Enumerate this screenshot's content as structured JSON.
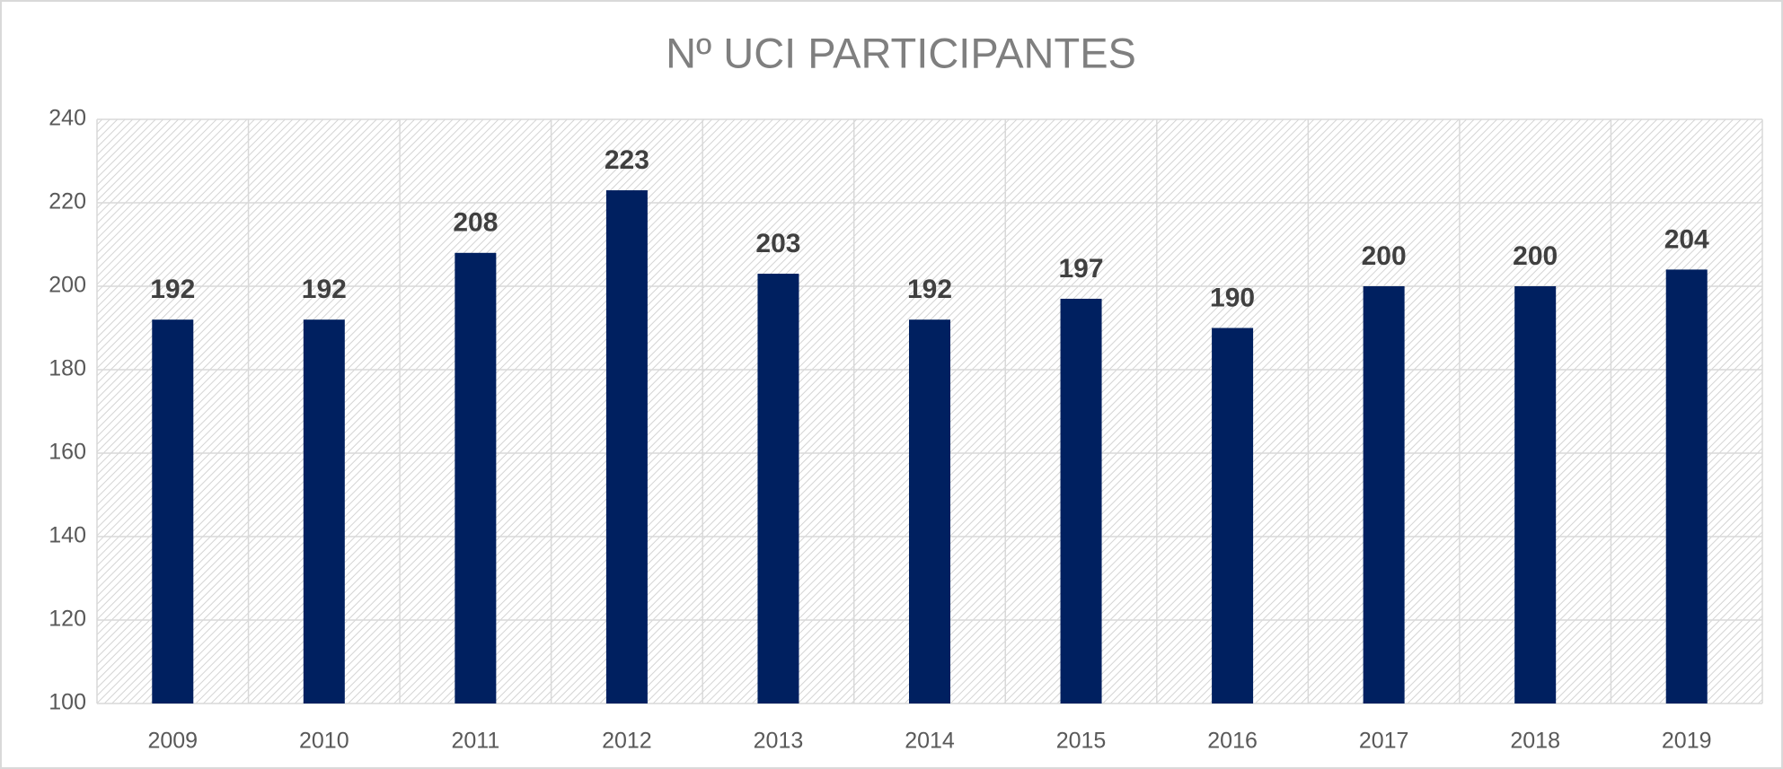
{
  "chart_data": {
    "type": "bar",
    "title": "Nº UCI PARTICIPANTES",
    "categories": [
      "2009",
      "2010",
      "2011",
      "2012",
      "2013",
      "2014",
      "2015",
      "2016",
      "2017",
      "2018",
      "2019"
    ],
    "values": [
      192,
      192,
      208,
      223,
      203,
      192,
      197,
      190,
      200,
      200,
      204
    ],
    "color": "#002060",
    "ylim": [
      100,
      240
    ],
    "yticks": [
      100,
      120,
      140,
      160,
      180,
      200,
      220,
      240
    ],
    "grid": true
  }
}
